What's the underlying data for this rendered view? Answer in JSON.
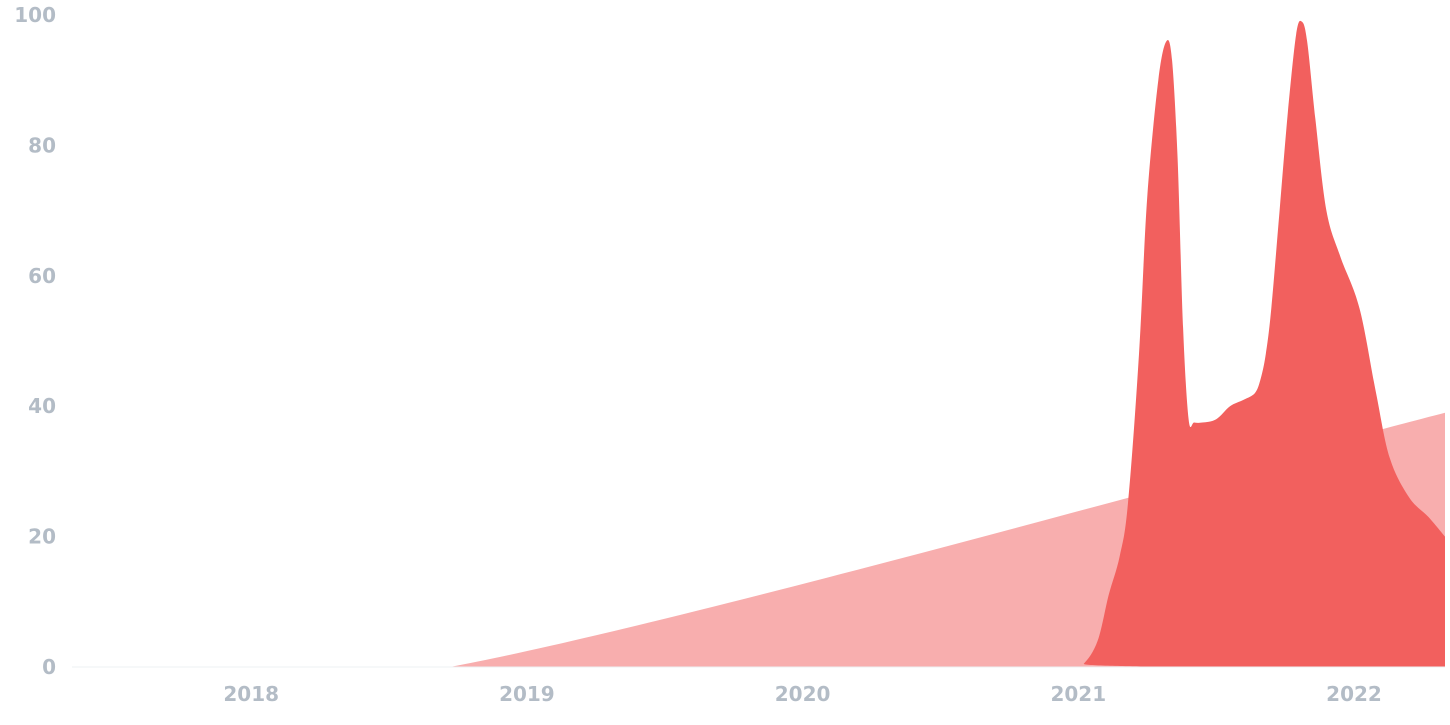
{
  "chart_data": {
    "type": "area",
    "title": "",
    "xlabel": "",
    "ylabel": "",
    "xlim": [
      2017.35,
      2022.33
    ],
    "ylim": [
      0,
      100
    ],
    "x_ticks": [
      2018,
      2019,
      2020,
      2021,
      2022
    ],
    "x_tick_labels": [
      "2018",
      "2019",
      "2020",
      "2021",
      "2022"
    ],
    "y_ticks": [
      0,
      20,
      40,
      60,
      80,
      100
    ],
    "y_tick_labels": [
      "0",
      "20",
      "40",
      "60",
      "80",
      "100"
    ],
    "grid": false,
    "legend": "none",
    "series": [
      {
        "color": "#f8aeae",
        "x": [
          2017.35,
          2018.72,
          2022.33
        ],
        "y": [
          0,
          0,
          39
        ]
      },
      {
        "color": "#f2605e",
        "x": [
          2017.35,
          2020.98,
          2021.02,
          2021.07,
          2021.11,
          2021.15,
          2021.18,
          2021.22,
          2021.25,
          2021.29,
          2021.32,
          2021.34,
          2021.36,
          2021.38,
          2021.4,
          2021.42,
          2021.45,
          2021.5,
          2021.55,
          2021.6,
          2021.64,
          2021.66,
          2021.68,
          2021.7,
          2021.73,
          2021.76,
          2021.79,
          2021.81,
          2021.83,
          2021.86,
          2021.9,
          2021.95,
          2022.02,
          2022.08,
          2022.13,
          2022.2,
          2022.27,
          2022.33
        ],
        "y": [
          0,
          0,
          0.5,
          4,
          11,
          17,
          25,
          48,
          72,
          90,
          96,
          93,
          78,
          52,
          38,
          37.5,
          37.5,
          38,
          40,
          41,
          42,
          44,
          48,
          55,
          70,
          85,
          97,
          99,
          96,
          84,
          70,
          63,
          55,
          42,
          32,
          26,
          23,
          20
        ]
      }
    ]
  }
}
